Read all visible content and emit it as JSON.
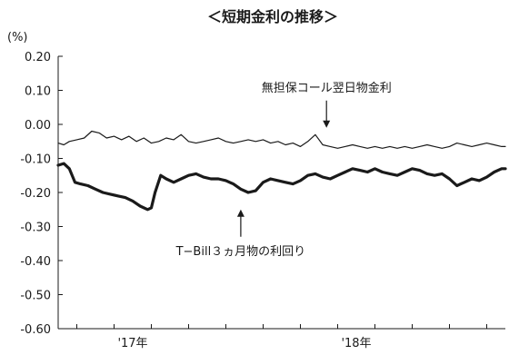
{
  "chart_data": {
    "type": "line",
    "title": "＜短期金利の推移＞",
    "unit_label": "(%)",
    "ylim": [
      -0.6,
      0.2
    ],
    "yticks": [
      "0.20",
      "0.10",
      "0.00",
      "-0.10",
      "-0.20",
      "-0.30",
      "-0.40",
      "-0.50",
      "-0.60"
    ],
    "yticks_values": [
      0.2,
      0.1,
      0.0,
      -0.1,
      -0.2,
      -0.3,
      -0.4,
      -0.5,
      -0.6
    ],
    "xlim": [
      0,
      24
    ],
    "x_tick_positions": [
      1,
      3,
      5,
      7,
      9,
      11,
      13,
      15,
      17,
      19,
      21,
      23
    ],
    "x_year_labels": [
      {
        "label": "'17年",
        "x": 4
      },
      {
        "label": "'18年",
        "x": 16
      }
    ],
    "grid": false,
    "series": [
      {
        "name": "無担保コール翌日物金利",
        "color": "#1a1a1a",
        "width": "thin",
        "x": [
          0,
          0.3,
          0.6,
          1.0,
          1.4,
          1.8,
          2.2,
          2.6,
          3.0,
          3.4,
          3.8,
          4.2,
          4.6,
          5.0,
          5.4,
          5.8,
          6.2,
          6.6,
          7.0,
          7.4,
          7.8,
          8.2,
          8.6,
          9.0,
          9.4,
          9.8,
          10.2,
          10.6,
          11.0,
          11.4,
          11.8,
          12.2,
          12.6,
          13.0,
          13.4,
          13.8,
          14.2,
          14.6,
          15.0,
          15.4,
          15.8,
          16.2,
          16.6,
          17.0,
          17.4,
          17.8,
          18.2,
          18.6,
          19.0,
          19.4,
          19.8,
          20.2,
          20.6,
          21.0,
          21.4,
          21.8,
          22.2,
          22.6,
          23.0,
          23.4,
          23.8,
          24.0
        ],
        "values": [
          -0.055,
          -0.06,
          -0.05,
          -0.045,
          -0.04,
          -0.02,
          -0.025,
          -0.04,
          -0.035,
          -0.045,
          -0.035,
          -0.05,
          -0.04,
          -0.055,
          -0.05,
          -0.04,
          -0.045,
          -0.03,
          -0.05,
          -0.055,
          -0.05,
          -0.045,
          -0.04,
          -0.05,
          -0.055,
          -0.05,
          -0.045,
          -0.05,
          -0.045,
          -0.055,
          -0.05,
          -0.06,
          -0.055,
          -0.065,
          -0.05,
          -0.03,
          -0.06,
          -0.065,
          -0.07,
          -0.065,
          -0.06,
          -0.065,
          -0.07,
          -0.065,
          -0.07,
          -0.065,
          -0.07,
          -0.065,
          -0.07,
          -0.065,
          -0.06,
          -0.065,
          -0.07,
          -0.065,
          -0.055,
          -0.06,
          -0.065,
          -0.06,
          -0.055,
          -0.06,
          -0.065,
          -0.065
        ]
      },
      {
        "name": "T−Bill３ヵ月物の利回り",
        "color": "#1a1a1a",
        "width": "thick",
        "x": [
          0,
          0.3,
          0.6,
          0.9,
          1.2,
          1.6,
          2.0,
          2.4,
          2.8,
          3.2,
          3.6,
          4.0,
          4.4,
          4.8,
          5.0,
          5.2,
          5.5,
          5.8,
          6.2,
          6.6,
          7.0,
          7.4,
          7.8,
          8.2,
          8.6,
          9.0,
          9.4,
          9.8,
          10.2,
          10.6,
          11.0,
          11.4,
          11.8,
          12.2,
          12.6,
          13.0,
          13.4,
          13.8,
          14.2,
          14.6,
          15.0,
          15.4,
          15.8,
          16.2,
          16.6,
          17.0,
          17.4,
          17.8,
          18.2,
          18.6,
          19.0,
          19.4,
          19.8,
          20.2,
          20.6,
          21.0,
          21.4,
          21.8,
          22.2,
          22.6,
          23.0,
          23.4,
          23.8,
          24.0
        ],
        "values": [
          -0.12,
          -0.115,
          -0.13,
          -0.17,
          -0.175,
          -0.18,
          -0.19,
          -0.2,
          -0.205,
          -0.21,
          -0.215,
          -0.225,
          -0.24,
          -0.25,
          -0.245,
          -0.2,
          -0.15,
          -0.16,
          -0.17,
          -0.16,
          -0.15,
          -0.145,
          -0.155,
          -0.16,
          -0.16,
          -0.165,
          -0.175,
          -0.19,
          -0.2,
          -0.195,
          -0.17,
          -0.16,
          -0.165,
          -0.17,
          -0.175,
          -0.165,
          -0.15,
          -0.145,
          -0.155,
          -0.16,
          -0.15,
          -0.14,
          -0.13,
          -0.135,
          -0.14,
          -0.13,
          -0.14,
          -0.145,
          -0.15,
          -0.14,
          -0.13,
          -0.135,
          -0.145,
          -0.15,
          -0.145,
          -0.16,
          -0.18,
          -0.17,
          -0.16,
          -0.165,
          -0.155,
          -0.14,
          -0.13,
          -0.13
        ]
      }
    ],
    "annotations": [
      {
        "text": "無担保コール翌日物金利",
        "series": 0,
        "point_x": 14.4,
        "point_y": -0.01,
        "arrow": "down"
      },
      {
        "text": "T−Bill３ヵ月物の利回り",
        "series": 1,
        "point_x": 9.8,
        "point_y": -0.25,
        "arrow": "up"
      }
    ]
  }
}
